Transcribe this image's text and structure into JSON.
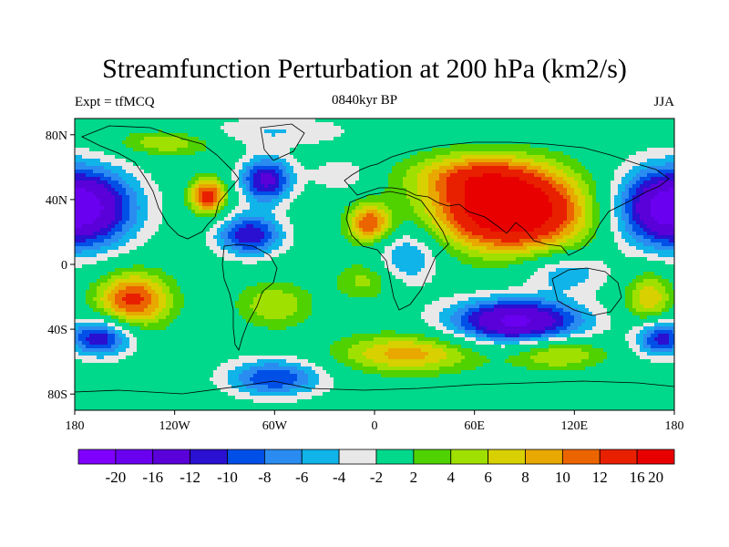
{
  "title": "Streamfunction Perturbation at 200 hPa (km2/s)",
  "subtitle_left": "Expt = tfMCQ",
  "subtitle_center": "0840kyr BP",
  "subtitle_right": "JJA",
  "axes": {
    "x_ticks": [
      {
        "value": -180,
        "label": "180"
      },
      {
        "value": -120,
        "label": "120W"
      },
      {
        "value": -60,
        "label": "60W"
      },
      {
        "value": 0,
        "label": "0"
      },
      {
        "value": 60,
        "label": "60E"
      },
      {
        "value": 120,
        "label": "120E"
      },
      {
        "value": 180,
        "label": "180"
      }
    ],
    "y_ticks": [
      {
        "value": 80,
        "label": "80N"
      },
      {
        "value": 40,
        "label": "40N"
      },
      {
        "value": 0,
        "label": "0"
      },
      {
        "value": -40,
        "label": "40S"
      },
      {
        "value": -80,
        "label": "80S"
      }
    ],
    "lon_range": [
      -180,
      180
    ],
    "lat_range": [
      -90,
      90
    ]
  },
  "colorbar": {
    "colors": [
      "#7f00ff",
      "#6a00f0",
      "#5a00d8",
      "#2a10d0",
      "#0050e8",
      "#2a8cf0",
      "#10b4e8",
      "#e8e8e8",
      "#00d88c",
      "#50d200",
      "#a0e000",
      "#d8d000",
      "#e8a800",
      "#ec6400",
      "#e82000",
      "#e80000"
    ],
    "labels": [
      "-20",
      "-16",
      "-12",
      "-10",
      "-8",
      "-6",
      "-4",
      "-2",
      "2",
      "4",
      "6",
      "8",
      "10",
      "12",
      "16",
      "20"
    ]
  },
  "field": {
    "centers": [
      {
        "lon": 82,
        "lat": 33,
        "amp": 22,
        "rlon": 45,
        "rlat": 24
      },
      {
        "lon": 60,
        "lat": 55,
        "amp": 8,
        "rlon": 40,
        "rlat": 14
      },
      {
        "lon": -100,
        "lat": 42,
        "amp": 14,
        "rlon": 11,
        "rlat": 11
      },
      {
        "lon": -3,
        "lat": 25,
        "amp": 12,
        "rlon": 13,
        "rlat": 12
      },
      {
        "lon": -145,
        "lat": -22,
        "amp": 13,
        "rlon": 22,
        "rlat": 17
      },
      {
        "lon": 165,
        "lat": -22,
        "amp": 8,
        "rlon": 14,
        "rlat": 18
      },
      {
        "lon": 20,
        "lat": -55,
        "amp": 9,
        "rlon": 42,
        "rlat": 12
      },
      {
        "lon": 110,
        "lat": -55,
        "amp": 7,
        "rlon": 28,
        "rlat": 10
      },
      {
        "lon": -60,
        "lat": -25,
        "amp": 6,
        "rlon": 22,
        "rlat": 14
      },
      {
        "lon": -5,
        "lat": -10,
        "amp": 5,
        "rlon": 18,
        "rlat": 12
      },
      {
        "lon": -125,
        "lat": 75,
        "amp": 6,
        "rlon": 30,
        "rlat": 8
      },
      {
        "lon": -180,
        "lat": 35,
        "amp": -20,
        "rlon": 35,
        "rlat": 25
      },
      {
        "lon": 180,
        "lat": 35,
        "amp": -20,
        "rlon": 35,
        "rlat": 25
      },
      {
        "lon": -65,
        "lat": 52,
        "amp": -13,
        "rlon": 16,
        "rlat": 14
      },
      {
        "lon": -75,
        "lat": 18,
        "amp": -12,
        "rlon": 20,
        "rlat": 13
      },
      {
        "lon": 85,
        "lat": -35,
        "amp": -17,
        "rlon": 40,
        "rlat": 14
      },
      {
        "lon": 20,
        "lat": 5,
        "amp": -7,
        "rlon": 20,
        "rlat": 18
      },
      {
        "lon": 115,
        "lat": -5,
        "amp": -6,
        "rlon": 25,
        "rlat": 12
      },
      {
        "lon": -60,
        "lat": -70,
        "amp": -10,
        "rlon": 30,
        "rlat": 12
      },
      {
        "lon": -165,
        "lat": -45,
        "amp": -12,
        "rlon": 20,
        "rlat": 12
      },
      {
        "lon": 172,
        "lat": -45,
        "amp": -12,
        "rlon": 16,
        "rlat": 12
      },
      {
        "lon": -60,
        "lat": 82,
        "amp": -4,
        "rlon": 50,
        "rlat": 10
      },
      {
        "lon": -20,
        "lat": 55,
        "amp": -4,
        "rlon": 18,
        "rlat": 10
      }
    ]
  }
}
